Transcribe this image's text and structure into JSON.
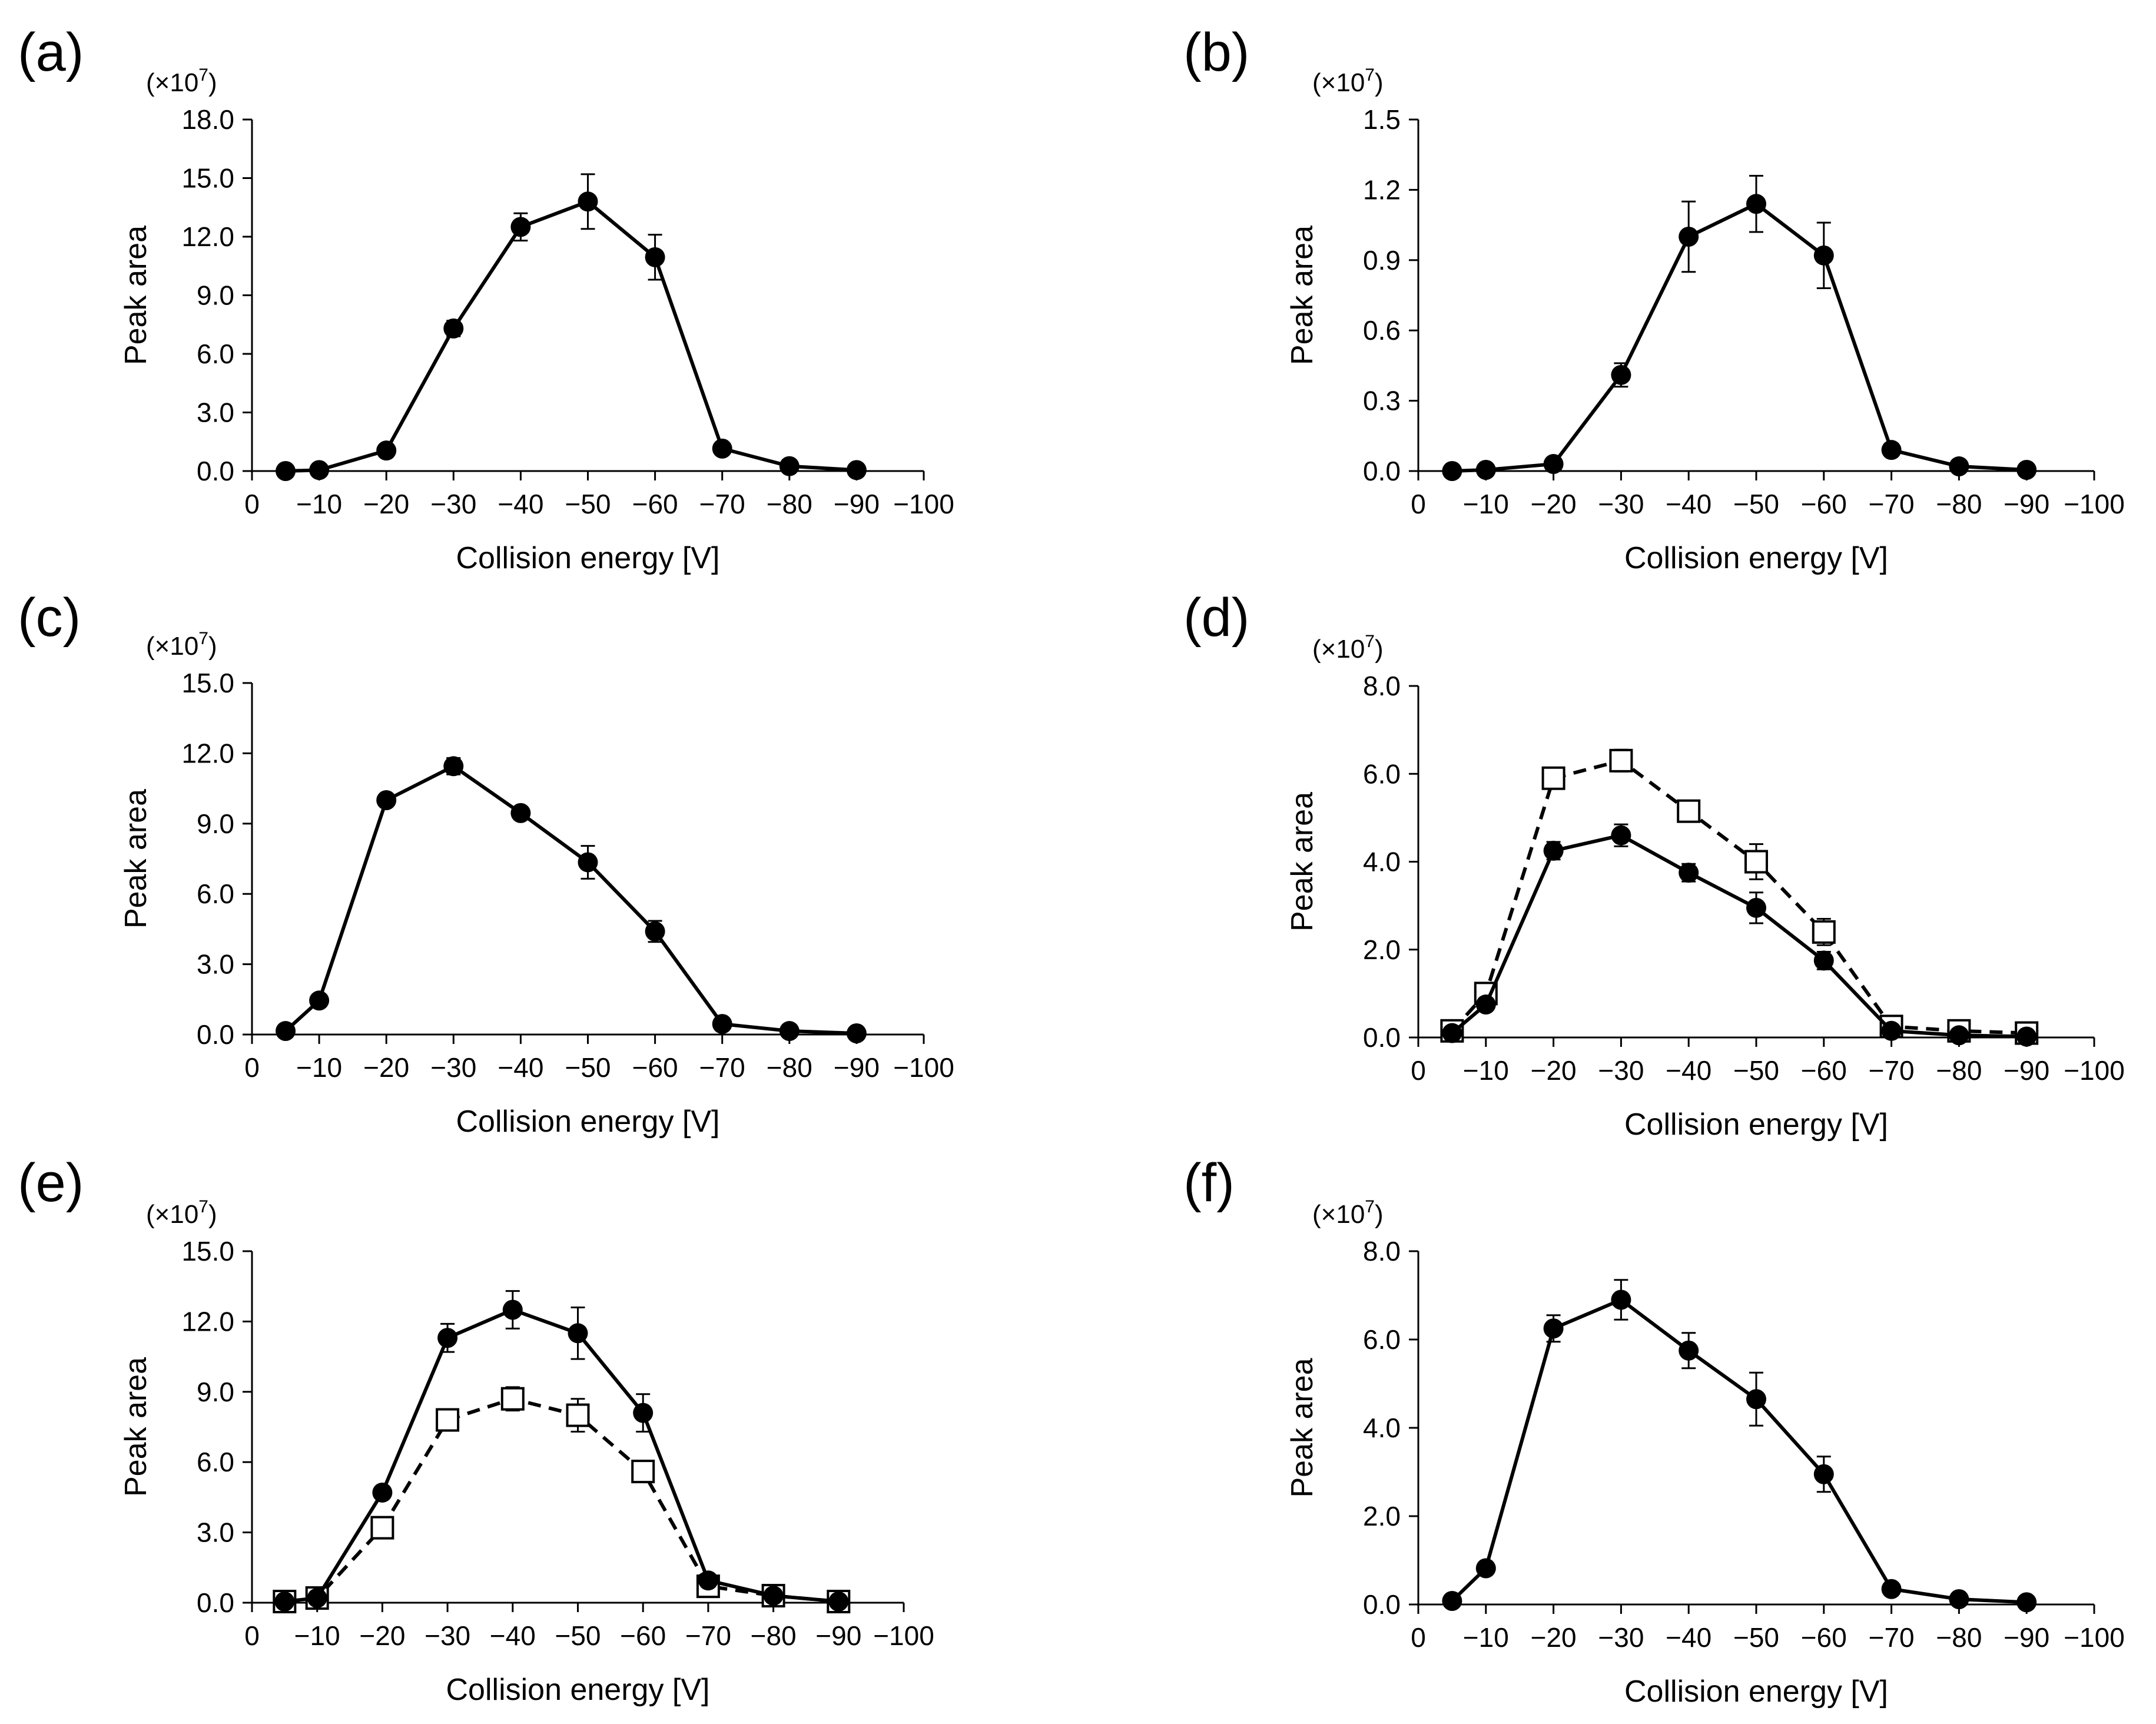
{
  "chart_data": [
    {
      "type": "line",
      "panel_label": "(a)",
      "multiplier_label": "(×10",
      "multiplier_exp": "7",
      "multiplier_close": ")",
      "xlabel": "Collision energy [V]",
      "ylabel": "Peak area",
      "x_positions": [
        0,
        10,
        20,
        30,
        40,
        50,
        60,
        70,
        80,
        90,
        100
      ],
      "x_tick_labels": [
        "0",
        "−10",
        "−20",
        "−30",
        "−40",
        "−50",
        "−60",
        "−70",
        "−80",
        "−90",
        "−100"
      ],
      "ylim": [
        0,
        18
      ],
      "y_ticks": [
        0,
        3,
        6,
        9,
        12,
        15,
        18
      ],
      "y_tick_labels": [
        "0.0",
        "3.0",
        "6.0",
        "9.0",
        "12.0",
        "15.0",
        "18.0"
      ],
      "x": [
        5,
        10,
        20,
        30,
        40,
        50,
        60,
        70,
        80,
        90
      ],
      "series": [
        {
          "name": "filled circles",
          "marker": "filled-circle",
          "line": "solid",
          "values": [
            0.0,
            0.05,
            1.05,
            7.3,
            12.5,
            13.8,
            10.95,
            1.15,
            0.25,
            0.05
          ],
          "errors": [
            0.0,
            0.0,
            0.1,
            0.4,
            0.7,
            1.4,
            1.15,
            0.1,
            0.05,
            0.0
          ]
        }
      ]
    },
    {
      "type": "line",
      "panel_label": "(b)",
      "multiplier_label": "(×10",
      "multiplier_exp": "7",
      "multiplier_close": ")",
      "xlabel": "Collision energy [V]",
      "ylabel": "Peak area",
      "x_positions": [
        0,
        10,
        20,
        30,
        40,
        50,
        60,
        70,
        80,
        90,
        100
      ],
      "x_tick_labels": [
        "0",
        "−10",
        "−20",
        "−30",
        "−40",
        "−50",
        "−60",
        "−70",
        "−80",
        "−90",
        "−100"
      ],
      "ylim": [
        0,
        1.5
      ],
      "y_ticks": [
        0,
        0.3,
        0.6,
        0.9,
        1.2,
        1.5
      ],
      "y_tick_labels": [
        "0.0",
        "0.3",
        "0.6",
        "0.9",
        "1.2",
        "1.5"
      ],
      "x": [
        5,
        10,
        20,
        30,
        40,
        50,
        60,
        70,
        80,
        90
      ],
      "series": [
        {
          "name": "filled circles",
          "marker": "filled-circle",
          "line": "solid",
          "values": [
            0.0,
            0.005,
            0.03,
            0.41,
            1.0,
            1.14,
            0.92,
            0.09,
            0.02,
            0.005
          ],
          "errors": [
            0.0,
            0.0,
            0.0,
            0.05,
            0.15,
            0.12,
            0.14,
            0.0,
            0.0,
            0.0
          ]
        }
      ]
    },
    {
      "type": "line",
      "panel_label": "(c)",
      "multiplier_label": "(×10",
      "multiplier_exp": "7",
      "multiplier_close": ")",
      "xlabel": "Collision energy [V]",
      "ylabel": "Peak area",
      "x_positions": [
        0,
        10,
        20,
        30,
        40,
        50,
        60,
        70,
        80,
        90,
        100
      ],
      "x_tick_labels": [
        "0",
        "−10",
        "−20",
        "−30",
        "−40",
        "−50",
        "−60",
        "−70",
        "−80",
        "−90",
        "−100"
      ],
      "ylim": [
        0,
        15
      ],
      "y_ticks": [
        0,
        3,
        6,
        9,
        12,
        15
      ],
      "y_tick_labels": [
        "0.0",
        "3.0",
        "6.0",
        "9.0",
        "12.0",
        "15.0"
      ],
      "x": [
        5,
        10,
        20,
        30,
        40,
        50,
        60,
        70,
        80,
        90
      ],
      "series": [
        {
          "name": "filled circles",
          "marker": "filled-circle",
          "line": "solid",
          "values": [
            0.15,
            1.45,
            10.0,
            11.45,
            9.45,
            7.35,
            4.4,
            0.45,
            0.15,
            0.05
          ],
          "errors": [
            0.0,
            0.0,
            0.0,
            0.35,
            0.2,
            0.7,
            0.45,
            0.0,
            0.0,
            0.0
          ]
        }
      ]
    },
    {
      "type": "line",
      "panel_label": "(d)",
      "multiplier_label": "(×10",
      "multiplier_exp": "7",
      "multiplier_close": ")",
      "xlabel": "Collision energy [V]",
      "ylabel": "Peak area",
      "x_positions": [
        0,
        10,
        20,
        30,
        40,
        50,
        60,
        70,
        80,
        90,
        100
      ],
      "x_tick_labels": [
        "0",
        "−10",
        "−20",
        "−30",
        "−40",
        "−50",
        "−60",
        "−70",
        "−80",
        "−90",
        "−100"
      ],
      "ylim": [
        0,
        8
      ],
      "y_ticks": [
        0,
        2,
        4,
        6,
        8
      ],
      "y_tick_labels": [
        "0.0",
        "2.0",
        "4.0",
        "6.0",
        "8.0"
      ],
      "x": [
        5,
        10,
        20,
        30,
        40,
        50,
        60,
        70,
        80,
        90
      ],
      "series": [
        {
          "name": "open squares",
          "marker": "open-square",
          "line": "dashed",
          "values": [
            0.15,
            1.0,
            5.9,
            6.3,
            5.15,
            4.0,
            2.4,
            0.25,
            0.15,
            0.1
          ],
          "errors": [
            0.0,
            0.0,
            0.0,
            0.25,
            0.0,
            0.4,
            0.3,
            0.0,
            0.0,
            0.0
          ]
        },
        {
          "name": "filled circles",
          "marker": "filled-circle",
          "line": "solid",
          "values": [
            0.1,
            0.75,
            4.25,
            4.6,
            3.75,
            2.95,
            1.75,
            0.15,
            0.05,
            0.02
          ],
          "errors": [
            0.0,
            0.0,
            0.2,
            0.25,
            0.2,
            0.35,
            0.2,
            0.0,
            0.0,
            0.0
          ]
        }
      ]
    },
    {
      "type": "line",
      "panel_label": "(e)",
      "multiplier_label": "(×10",
      "multiplier_exp": "7",
      "multiplier_close": ")",
      "xlabel": "Collision energy [V]",
      "ylabel": "Peak area",
      "x_positions": [
        0,
        10,
        20,
        30,
        40,
        50,
        60,
        70,
        80,
        90,
        100
      ],
      "x_tick_labels": [
        "0",
        "−10",
        "−20",
        "−30",
        "−40",
        "−50",
        "−60",
        "−70",
        "−80",
        "−90",
        "−100"
      ],
      "ylim": [
        0,
        15
      ],
      "y_ticks": [
        0,
        3,
        6,
        9,
        12,
        15
      ],
      "y_tick_labels": [
        "0.0",
        "3.0",
        "6.0",
        "9.0",
        "12.0",
        "15.0"
      ],
      "x": [
        5,
        10,
        20,
        30,
        40,
        50,
        60,
        70,
        80,
        90
      ],
      "series": [
        {
          "name": "open squares",
          "marker": "open-square",
          "line": "dashed",
          "values": [
            0.05,
            0.2,
            3.2,
            7.8,
            8.7,
            8.0,
            5.6,
            0.7,
            0.3,
            0.05
          ],
          "errors": [
            0.0,
            0.0,
            0.0,
            0.0,
            0.5,
            0.7,
            0.0,
            0.0,
            0.0,
            0.0
          ]
        },
        {
          "name": "filled circles",
          "marker": "filled-circle",
          "line": "solid",
          "values": [
            0.05,
            0.2,
            4.7,
            11.3,
            12.5,
            11.5,
            8.1,
            0.95,
            0.3,
            0.05
          ],
          "errors": [
            0.0,
            0.0,
            0.0,
            0.6,
            0.8,
            1.1,
            0.8,
            0.0,
            0.0,
            0.0
          ]
        }
      ]
    },
    {
      "type": "line",
      "panel_label": "(f)",
      "multiplier_label": "(×10",
      "multiplier_exp": "7",
      "multiplier_close": ")",
      "xlabel": "Collision energy [V]",
      "ylabel": "Peak area",
      "x_positions": [
        0,
        10,
        20,
        30,
        40,
        50,
        60,
        70,
        80,
        90,
        100
      ],
      "x_tick_labels": [
        "0",
        "−10",
        "−20",
        "−30",
        "−40",
        "−50",
        "−60",
        "−70",
        "−80",
        "−90",
        "−100"
      ],
      "ylim": [
        0,
        8
      ],
      "y_ticks": [
        0,
        2,
        4,
        6,
        8
      ],
      "y_tick_labels": [
        "0.0",
        "2.0",
        "4.0",
        "6.0",
        "8.0"
      ],
      "x": [
        5,
        10,
        20,
        30,
        40,
        50,
        60,
        70,
        80,
        90
      ],
      "series": [
        {
          "name": "filled circles",
          "marker": "filled-circle",
          "line": "solid",
          "values": [
            0.08,
            0.82,
            6.25,
            6.9,
            5.75,
            4.65,
            2.95,
            0.35,
            0.12,
            0.05
          ],
          "errors": [
            0.0,
            0.0,
            0.3,
            0.45,
            0.4,
            0.6,
            0.4,
            0.0,
            0.0,
            0.0
          ]
        }
      ]
    }
  ]
}
